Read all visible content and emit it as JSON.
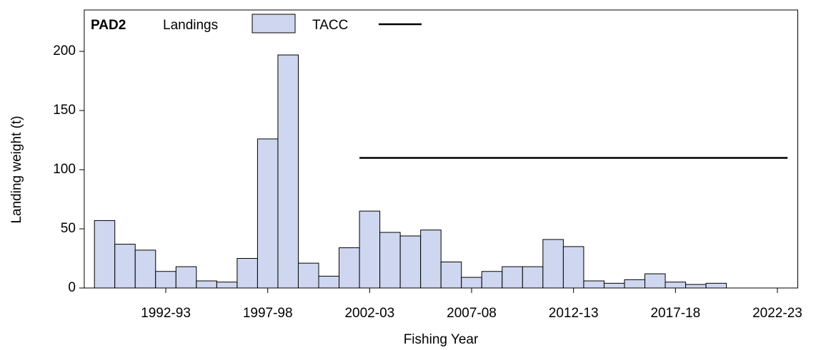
{
  "chart_data": {
    "type": "bar",
    "title": "PAD2",
    "xlabel": "Fishing Year",
    "ylabel": "Landing weight (t)",
    "x": [
      1989,
      1990,
      1991,
      1992,
      1993,
      1994,
      1995,
      1996,
      1997,
      1998,
      1999,
      2000,
      2001,
      2002,
      2003,
      2004,
      2005,
      2006,
      2007,
      2008,
      2009,
      2010,
      2011,
      2012,
      2013,
      2014,
      2015,
      2016,
      2017,
      2018,
      2019
    ],
    "series": [
      {
        "name": "Landings",
        "color": "#cfd6f0",
        "values": [
          57,
          37,
          32,
          14,
          18,
          6,
          5,
          25,
          126,
          197,
          21,
          10,
          34,
          65,
          47,
          44,
          49,
          22,
          9,
          14,
          18,
          18,
          41,
          35,
          6,
          4,
          7,
          12,
          5,
          3,
          4
        ]
      },
      {
        "name": "TACC",
        "color": "#000000",
        "type": "line",
        "x": [
          2001.5,
          2022.5
        ],
        "values": [
          110,
          110
        ]
      }
    ],
    "xlim": [
      1988,
      2023
    ],
    "xticks": [
      {
        "value": 1992,
        "label": "1992-93"
      },
      {
        "value": 1997,
        "label": "1997-98"
      },
      {
        "value": 2002,
        "label": "2002-03"
      },
      {
        "value": 2007,
        "label": "2007-08"
      },
      {
        "value": 2012,
        "label": "2012-13"
      },
      {
        "value": 2017,
        "label": "2017-18"
      },
      {
        "value": 2022,
        "label": "2022-23"
      }
    ],
    "ylim": [
      0,
      235
    ],
    "yticks": [
      0,
      50,
      100,
      150,
      200
    ],
    "grid": false
  }
}
